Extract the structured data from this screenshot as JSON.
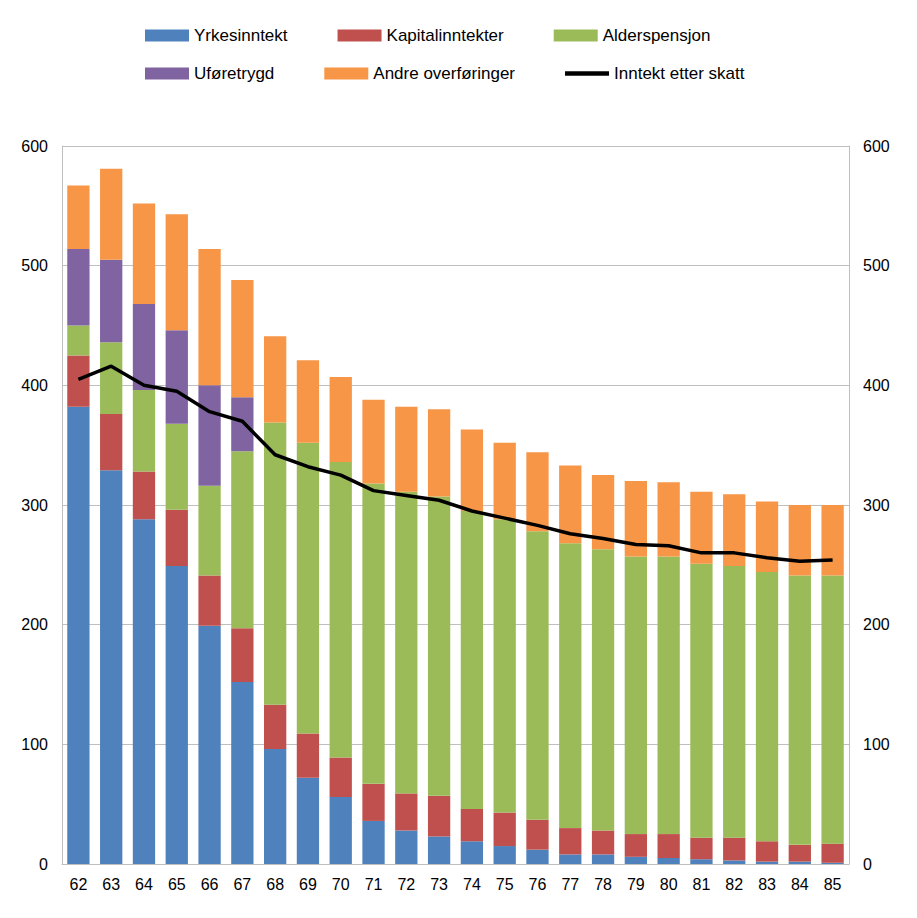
{
  "chart_data": {
    "type": "bar",
    "stacked": true,
    "grid": true,
    "legend": "top",
    "categories": [
      "62",
      "63",
      "64",
      "65",
      "66",
      "67",
      "68",
      "69",
      "70",
      "71",
      "72",
      "73",
      "74",
      "75",
      "76",
      "77",
      "78",
      "79",
      "80",
      "81",
      "82",
      "83",
      "84",
      "85"
    ],
    "ylim": [
      0,
      600
    ],
    "yticks": [
      0,
      100,
      200,
      300,
      400,
      500,
      600
    ],
    "y2lim": [
      0,
      600
    ],
    "y2ticks": [
      0,
      100,
      200,
      300,
      400,
      500,
      600
    ],
    "series": [
      {
        "name": "Yrkesinntekt",
        "type": "bar",
        "color": "#4f81bd",
        "values": [
          382,
          329,
          288,
          249,
          199,
          152,
          96,
          72,
          56,
          36,
          28,
          23,
          19,
          15,
          12,
          8,
          8,
          6,
          5,
          4,
          3,
          2,
          2,
          1
        ]
      },
      {
        "name": "Kapitalinntekter",
        "type": "bar",
        "color": "#c0504d",
        "values": [
          43,
          47,
          40,
          47,
          42,
          45,
          37,
          37,
          33,
          31,
          31,
          34,
          27,
          28,
          25,
          22,
          20,
          19,
          20,
          18,
          19,
          17,
          14,
          16
        ]
      },
      {
        "name": "Alderspensjon",
        "type": "bar",
        "color": "#9bbb59",
        "values": [
          25,
          60,
          68,
          72,
          75,
          148,
          236,
          243,
          247,
          251,
          252,
          250,
          249,
          245,
          241,
          238,
          235,
          232,
          232,
          229,
          227,
          225,
          225,
          224
        ]
      },
      {
        "name": "Uføretrygd",
        "type": "bar",
        "color": "#8064a2",
        "values": [
          64,
          69,
          72,
          78,
          84,
          45,
          null,
          null,
          null,
          null,
          null,
          null,
          null,
          null,
          null,
          null,
          null,
          null,
          null,
          null,
          null,
          null,
          null,
          null
        ]
      },
      {
        "name": "Andre overføringer",
        "type": "bar",
        "color": "#f79646",
        "values": [
          53,
          76,
          84,
          97,
          114,
          98,
          72,
          69,
          71,
          70,
          71,
          73,
          68,
          64,
          66,
          65,
          62,
          63,
          62,
          60,
          60,
          59,
          59,
          59
        ]
      },
      {
        "name": "Inntekt etter skatt",
        "type": "line",
        "color": "#000000",
        "line_style": "solid",
        "marker": "none",
        "values": [
          405,
          416,
          400,
          395,
          378,
          370,
          342,
          332,
          325,
          312,
          308,
          304,
          295,
          289,
          283,
          276,
          272,
          267,
          266,
          260,
          260,
          256,
          253,
          254
        ]
      }
    ]
  }
}
